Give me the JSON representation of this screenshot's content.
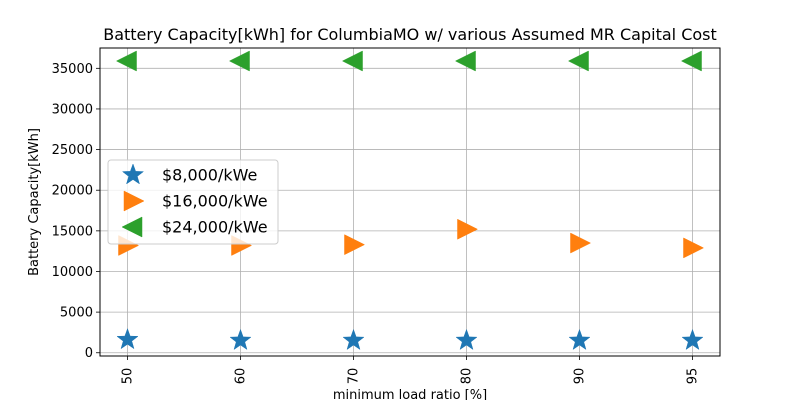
{
  "chart_data": {
    "type": "scatter",
    "title": "Battery Capacity[kWh] for ColumbiaMO w/ various Assumed MR Capital Cost",
    "xlabel": "minimum load ratio [%]",
    "ylabel": "Battery Capacity[kWh]",
    "categories": [
      "50",
      "60",
      "70",
      "80",
      "90",
      "95"
    ],
    "yticks": [
      "0",
      "5000",
      "10000",
      "15000",
      "20000",
      "25000",
      "30000",
      "35000"
    ],
    "ylim": [
      -400,
      37500
    ],
    "grid": true,
    "legend_position": "center-left",
    "series": [
      {
        "name": "$8,000/kWe",
        "marker": "star",
        "color": "#1f77b4",
        "values": [
          1600,
          1500,
          1500,
          1500,
          1500,
          1500
        ]
      },
      {
        "name": "$16,000/kWe",
        "marker": "triangle-right",
        "color": "#ff7f0e",
        "values": [
          13200,
          13200,
          13300,
          15200,
          13500,
          12900
        ]
      },
      {
        "name": "$24,000/kWe",
        "marker": "triangle-left",
        "color": "#2ca02c",
        "values": [
          35900,
          35900,
          35900,
          35900,
          35900,
          35900
        ]
      }
    ]
  }
}
